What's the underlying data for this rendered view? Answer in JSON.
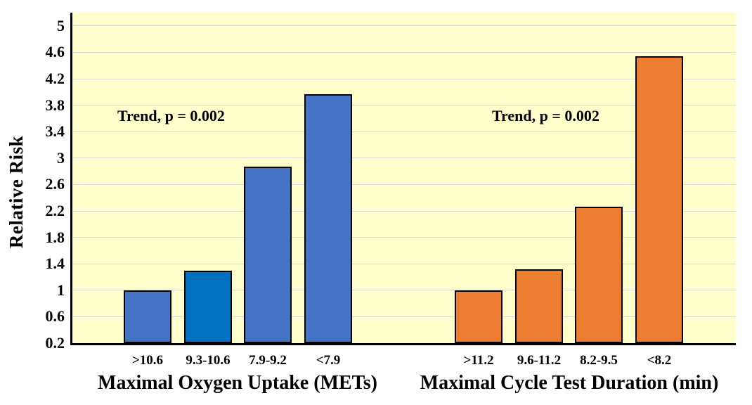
{
  "chart_data": {
    "type": "bar",
    "title": "",
    "ylabel": "Relative Risk",
    "ylim": [
      0.2,
      5.2
    ],
    "ytick_labels": [
      "5",
      "4.6",
      "4.2",
      "3.8",
      "3.4",
      "3",
      "2.6",
      "2.2",
      "1.8",
      "1.4",
      "1",
      "0.6",
      "0.2"
    ],
    "grid": true,
    "legend": "none",
    "colors": {
      "plot_background": "#FFFFCC",
      "outer_background": "#FFFFFF",
      "gridline": "#D9D9D9",
      "axis": "#000000",
      "blue_series": "#4472C4",
      "blue_alt_bar": "#0070C0",
      "orange_series": "#ED7D31",
      "bar_border": "#000000"
    },
    "groups": [
      {
        "xlabel": "Maximal Oxygen Uptake (METs)",
        "annotation": "Trend, p = 0.002",
        "categories": [
          ">10.6",
          "9.3-10.6",
          "7.9-9.2",
          "<7.9"
        ],
        "values": [
          1.0,
          1.3,
          2.87,
          3.97
        ],
        "bar_colors": [
          "#4472C4",
          "#0070C0",
          "#4472C4",
          "#4472C4"
        ]
      },
      {
        "xlabel": "Maximal Cycle Test Duration (min)",
        "annotation": "Trend, p = 0.002",
        "categories": [
          ">11.2",
          "9.6-11.2",
          "8.2-9.5",
          "<8.2"
        ],
        "values": [
          1.0,
          1.32,
          2.26,
          4.54
        ],
        "bar_colors": [
          "#ED7D31",
          "#ED7D31",
          "#ED7D31",
          "#ED7D31"
        ]
      }
    ]
  }
}
